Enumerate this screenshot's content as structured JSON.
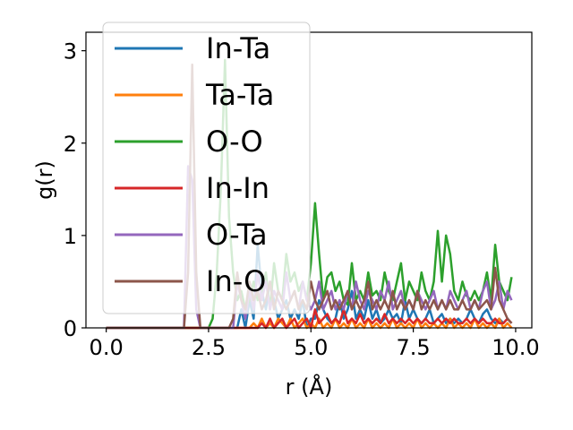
{
  "chart_data": {
    "type": "line",
    "xlabel": "r (Å)",
    "ylabel": "g(r)",
    "xlim": [
      -0.495,
      10.395
    ],
    "ylim": [
      0,
      3.2
    ],
    "xticks": [
      0.0,
      2.5,
      5.0,
      7.5,
      10.0
    ],
    "xtick_labels": [
      "0.0",
      "2.5",
      "5.0",
      "7.5",
      "10.0"
    ],
    "yticks": [
      0,
      1,
      2,
      3
    ],
    "ytick_labels": [
      "0",
      "1",
      "2",
      "3"
    ],
    "grid": false,
    "legend_position": "top-left",
    "x": [
      0.0,
      0.1,
      0.2,
      0.3,
      0.4,
      0.5,
      0.6,
      0.7,
      0.8,
      0.9,
      1.0,
      1.1,
      1.2,
      1.3,
      1.4,
      1.5,
      1.6,
      1.7,
      1.8,
      1.9,
      2.0,
      2.1,
      2.2,
      2.3,
      2.4,
      2.5,
      2.6,
      2.7,
      2.8,
      2.9,
      3.0,
      3.1,
      3.2,
      3.3,
      3.4,
      3.5,
      3.6,
      3.7,
      3.8,
      3.9,
      4.0,
      4.1,
      4.2,
      4.3,
      4.4,
      4.5,
      4.6,
      4.7,
      4.8,
      4.9,
      5.0,
      5.1,
      5.2,
      5.3,
      5.4,
      5.5,
      5.6,
      5.7,
      5.8,
      5.9,
      6.0,
      6.1,
      6.2,
      6.3,
      6.4,
      6.5,
      6.6,
      6.7,
      6.8,
      6.9,
      7.0,
      7.1,
      7.2,
      7.3,
      7.4,
      7.5,
      7.6,
      7.7,
      7.8,
      7.9,
      8.0,
      8.1,
      8.2,
      8.3,
      8.4,
      8.5,
      8.6,
      8.7,
      8.8,
      8.9,
      9.0,
      9.1,
      9.2,
      9.3,
      9.4,
      9.5,
      9.6,
      9.7,
      9.8,
      9.9
    ],
    "series": [
      {
        "name": "In-Ta",
        "color": "#1f77b4",
        "values": [
          0,
          0,
          0,
          0,
          0,
          0,
          0,
          0,
          0,
          0,
          0,
          0,
          0,
          0,
          0,
          0,
          0,
          0,
          0,
          0,
          0,
          0,
          0,
          0,
          0,
          0,
          0,
          0,
          0,
          0,
          0,
          0,
          0,
          0.2,
          0,
          0.3,
          0.1,
          0.9,
          0.4,
          0.2,
          0.5,
          0.3,
          0.1,
          0.2,
          0.3,
          0.1,
          0.2,
          0.1,
          0.3,
          0,
          0.1,
          0.1,
          0.3,
          0.2,
          0.1,
          0.05,
          0.1,
          0.3,
          0.1,
          0.2,
          0.4,
          0.1,
          0.2,
          0.1,
          0.3,
          0.1,
          0.2,
          0.05,
          0.1,
          0.2,
          0.1,
          0.15,
          0.05,
          0.3,
          0.1,
          0.2,
          0.1,
          0.05,
          0.1,
          0.2,
          0.05,
          0.1,
          0.15,
          0.05,
          0.1,
          0.05,
          0.1,
          0.05,
          0.1,
          0.2,
          0.1,
          0.05,
          0.15,
          0.2,
          0.1,
          0.05,
          0.1,
          0.05,
          0.1,
          0.05
        ]
      },
      {
        "name": "Ta-Ta",
        "color": "#ff7f0e",
        "values": [
          0,
          0,
          0,
          0,
          0,
          0,
          0,
          0,
          0,
          0,
          0,
          0,
          0,
          0,
          0,
          0,
          0,
          0,
          0,
          0,
          0,
          0,
          0,
          0,
          0,
          0,
          0,
          0,
          0,
          0,
          0,
          0,
          0,
          0,
          0,
          0,
          0.05,
          0,
          0.1,
          0,
          0.05,
          0,
          0.1,
          0.05,
          0,
          0.1,
          0,
          0.05,
          0.1,
          0,
          0.05,
          0,
          0.1,
          0,
          0.05,
          0,
          0.1,
          0,
          0.05,
          0,
          0.1,
          0,
          0.05,
          0,
          0.1,
          0,
          0.05,
          0,
          0.05,
          0,
          0.1,
          0,
          0.05,
          0,
          0.05,
          0,
          0.1,
          0,
          0.05,
          0,
          0.05,
          0,
          0.05,
          0,
          0.1,
          0,
          0.05,
          0,
          0.05,
          0,
          0.1,
          0,
          0.05,
          0,
          0.05,
          0,
          0.1,
          0,
          0.05,
          0
        ]
      },
      {
        "name": "O-O",
        "color": "#2ca02c",
        "values": [
          0,
          0,
          0,
          0,
          0,
          0,
          0,
          0,
          0,
          0,
          0,
          0,
          0,
          0,
          0,
          0,
          0,
          0,
          0,
          0,
          0,
          0,
          0,
          0,
          0,
          0,
          0.1,
          0.6,
          1.5,
          2.9,
          1.2,
          0.6,
          0.3,
          0.4,
          0.2,
          0.3,
          0.5,
          0.3,
          0.4,
          0.6,
          0.2,
          0.7,
          0.4,
          0.3,
          0.8,
          0.5,
          0.6,
          0.4,
          0.5,
          0.3,
          0.7,
          1.35,
          0.8,
          0.3,
          0.55,
          0.6,
          0.4,
          0.5,
          0.3,
          0.25,
          0.7,
          0.3,
          0.4,
          0.3,
          0.6,
          0.35,
          0.4,
          0.3,
          0.6,
          0.4,
          0.3,
          0.5,
          0.7,
          0.3,
          0.5,
          0.4,
          0.3,
          0.6,
          0.4,
          0.3,
          0.5,
          1.05,
          0.5,
          1.0,
          0.8,
          0.4,
          0.3,
          0.5,
          0.35,
          0.3,
          0.4,
          0.3,
          0.4,
          0.6,
          0.3,
          0.9,
          0.5,
          0.4,
          0.3,
          0.55
        ]
      },
      {
        "name": "In-In",
        "color": "#d62728",
        "values": [
          0,
          0,
          0,
          0,
          0,
          0,
          0,
          0,
          0,
          0,
          0,
          0,
          0,
          0,
          0,
          0,
          0,
          0,
          0,
          0,
          0,
          0,
          0,
          0,
          0,
          0,
          0,
          0,
          0,
          0,
          0,
          0,
          0,
          0,
          0,
          0,
          0,
          0,
          0.05,
          0,
          0.1,
          0,
          0.05,
          0.1,
          0,
          0.05,
          0.1,
          0,
          0.05,
          0.1,
          0,
          0.2,
          0.05,
          0.1,
          0.15,
          0.05,
          0.1,
          0.05,
          0.2,
          0.05,
          0.1,
          0.05,
          0.15,
          0.05,
          0.1,
          0.05,
          0.1,
          0.05,
          0.15,
          0.05,
          0.1,
          0.05,
          0.1,
          0.05,
          0.1,
          0.05,
          0.1,
          0.05,
          0.1,
          0.05,
          0.05,
          0.1,
          0.05,
          0.1,
          0.05,
          0.1,
          0.05,
          0.05,
          0.1,
          0.05,
          0.1,
          0.05,
          0.1,
          0.05,
          0.05,
          0.1,
          0.05,
          0.05,
          0.1,
          0.05
        ]
      },
      {
        "name": "O-Ta",
        "color": "#9467bd",
        "values": [
          0,
          0,
          0,
          0,
          0,
          0,
          0,
          0,
          0,
          0,
          0,
          0,
          0,
          0,
          0,
          0,
          0,
          0,
          0,
          0,
          1.75,
          1.6,
          0.2,
          0,
          0,
          0,
          0,
          0,
          0,
          0,
          0,
          0,
          0.5,
          0.3,
          0.1,
          0.4,
          0.2,
          0.6,
          0.3,
          0.5,
          0.2,
          0.4,
          0.3,
          0.2,
          0.6,
          0.3,
          0.4,
          0.2,
          0.5,
          0.3,
          0.2,
          0.3,
          0.5,
          0.2,
          0.3,
          0.4,
          0.2,
          0.3,
          0.2,
          0.4,
          0.2,
          0.5,
          0.3,
          0.2,
          0.4,
          0.3,
          0.2,
          0.4,
          0.3,
          0.5,
          0.2,
          0.3,
          0.4,
          0.2,
          0.3,
          0.2,
          0.4,
          0.3,
          0.2,
          0.3,
          0.4,
          0.2,
          0.3,
          0.2,
          0.4,
          0.3,
          0.2,
          0.3,
          0.4,
          0.2,
          0.3,
          0.2,
          0.4,
          0.5,
          0.2,
          0.3,
          0.5,
          0.2,
          0.4,
          0.3
        ]
      },
      {
        "name": "In-O",
        "color": "#8c564b",
        "values": [
          0,
          0,
          0,
          0,
          0,
          0,
          0,
          0,
          0,
          0,
          0,
          0,
          0,
          0,
          0,
          0,
          0,
          0,
          0,
          0,
          0.6,
          2.85,
          0.6,
          0,
          0,
          0,
          0,
          0,
          0,
          0,
          0,
          0.1,
          0.6,
          0.3,
          0.2,
          0.5,
          0.3,
          0.4,
          0.2,
          0.3,
          0.5,
          0.2,
          0.4,
          0.3,
          0.2,
          0.3,
          0.4,
          0.2,
          0.3,
          0.2,
          0.5,
          0.3,
          0.2,
          0.3,
          0.4,
          0.2,
          0.3,
          0.2,
          0.3,
          0.4,
          0.2,
          0.3,
          0.2,
          0.3,
          0.5,
          0.2,
          0.3,
          0.2,
          0.3,
          0.2,
          0.4,
          0.2,
          0.3,
          0.2,
          0.3,
          0.2,
          0.4,
          0.2,
          0.3,
          0.2,
          0.3,
          0.2,
          0.3,
          0.2,
          0.3,
          0.2,
          0.2,
          0.3,
          0.2,
          0.2,
          0.3,
          0.2,
          0.25,
          0.3,
          0.2,
          0.65,
          0.3,
          0.2,
          0.1,
          0.05
        ]
      }
    ]
  }
}
